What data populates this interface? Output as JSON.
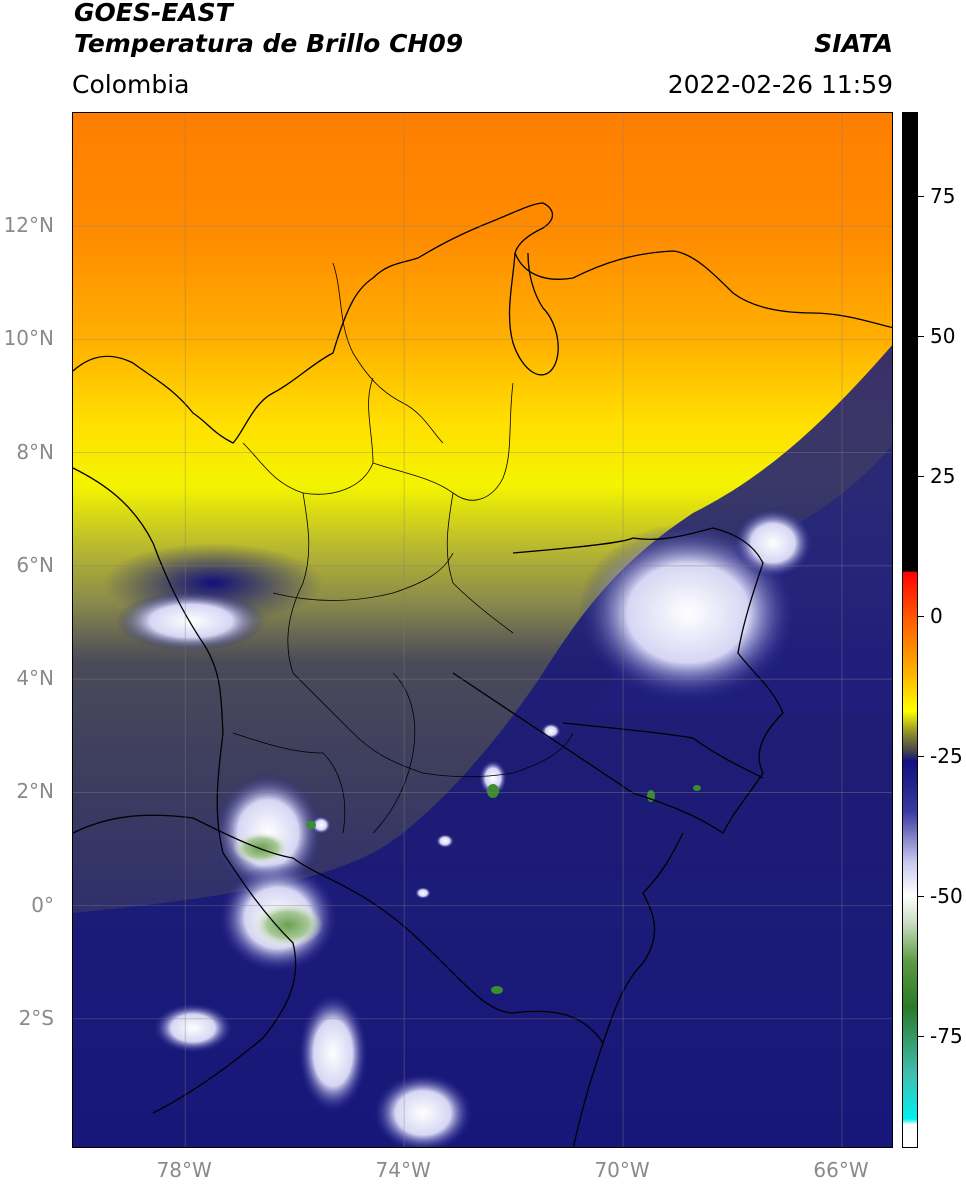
{
  "header": {
    "line1": "GOES-EAST",
    "line2": "Temperatura de Brillo CH09",
    "brand": "SIATA",
    "region": "Colombia",
    "datetime": "2022-02-26 11:59"
  },
  "map": {
    "lon_ticks": [
      {
        "value": -78,
        "label": "78°W"
      },
      {
        "value": -74,
        "label": "74°W"
      },
      {
        "value": -70,
        "label": "70°W"
      },
      {
        "value": -66,
        "label": "66°W"
      }
    ],
    "lat_ticks": [
      {
        "value": 12,
        "label": "12°N"
      },
      {
        "value": 10,
        "label": "10°N"
      },
      {
        "value": 8,
        "label": "8°N"
      },
      {
        "value": 6,
        "label": "6°N"
      },
      {
        "value": 4,
        "label": "4°N"
      },
      {
        "value": 2,
        "label": "2°N"
      },
      {
        "value": 0,
        "label": "0°"
      },
      {
        "value": -2,
        "label": "2°S"
      }
    ],
    "lon_range": [
      -80.05,
      -65.05
    ],
    "lat_range": [
      -4.3,
      14.0
    ],
    "gridlines": true,
    "colors": {
      "warm_orange": "#ff8a00",
      "yellow": "#ffff00",
      "olive": "#9a9a3c",
      "dark_grey": "#3c3c5c",
      "navy": "#14147a",
      "cloud_white": "#f2f2ff",
      "cold_green": "#3c8c32"
    }
  },
  "colorbar": {
    "min": -95,
    "max": 90,
    "ticks": [
      {
        "value": 75,
        "label": "75"
      },
      {
        "value": 50,
        "label": "50"
      },
      {
        "value": 25,
        "label": "25"
      },
      {
        "value": 0,
        "label": "0"
      },
      {
        "value": -25,
        "label": "-25"
      },
      {
        "value": -50,
        "label": "-50"
      },
      {
        "value": -75,
        "label": "-75"
      }
    ],
    "stops": [
      {
        "value": 90,
        "color": "#000000"
      },
      {
        "value": 8,
        "color": "#000000"
      },
      {
        "value": 7.9,
        "color": "#ff0000"
      },
      {
        "value": -2,
        "color": "#ff6a00"
      },
      {
        "value": -10,
        "color": "#ffb000"
      },
      {
        "value": -17,
        "color": "#ffff00"
      },
      {
        "value": -21,
        "color": "#8c8c2a"
      },
      {
        "value": -24,
        "color": "#4a4a4a"
      },
      {
        "value": -26,
        "color": "#101080"
      },
      {
        "value": -35,
        "color": "#3a3aa0"
      },
      {
        "value": -44,
        "color": "#c8c8ee"
      },
      {
        "value": -50,
        "color": "#ffffff"
      },
      {
        "value": -55,
        "color": "#c8dcc0"
      },
      {
        "value": -62,
        "color": "#5a9a40"
      },
      {
        "value": -70,
        "color": "#2a7a2a"
      },
      {
        "value": -82,
        "color": "#40c0b0"
      },
      {
        "value": -90,
        "color": "#00f0f0"
      },
      {
        "value": -91,
        "color": "#ffffff"
      },
      {
        "value": -95,
        "color": "#ffffff"
      }
    ]
  }
}
